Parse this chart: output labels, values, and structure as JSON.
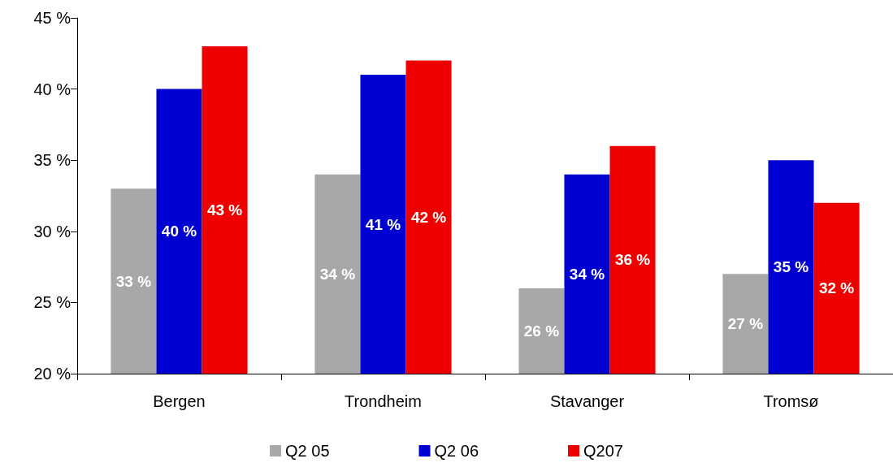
{
  "chart_data": {
    "type": "bar",
    "categories": [
      "Bergen",
      "Trondheim",
      "Stavanger",
      "Tromsø"
    ],
    "series": [
      {
        "name": "Q2 05",
        "color": "#a8a8a8",
        "values": [
          33,
          34,
          26,
          27
        ],
        "value_labels": [
          "33 %",
          "34 %",
          "26 %",
          "27 %"
        ]
      },
      {
        "name": "Q2 06",
        "color": "#0000d0",
        "values": [
          40,
          41,
          34,
          35
        ],
        "value_labels": [
          "40 %",
          "41 %",
          "34 %",
          "35 %"
        ]
      },
      {
        "name": "Q207",
        "color": "#ee0000",
        "values": [
          43,
          42,
          36,
          32
        ],
        "value_labels": [
          "43 %",
          "42 %",
          "36 %",
          "32 %"
        ]
      }
    ],
    "ylim": [
      20,
      45
    ],
    "yticks": [
      {
        "value": 20,
        "label": "20 %"
      },
      {
        "value": 25,
        "label": "25 %"
      },
      {
        "value": 30,
        "label": "30 %"
      },
      {
        "value": 35,
        "label": "35 %"
      },
      {
        "value": 40,
        "label": "40 %"
      },
      {
        "value": 45,
        "label": "45 %"
      }
    ],
    "grid": false,
    "legend": "bottom"
  }
}
